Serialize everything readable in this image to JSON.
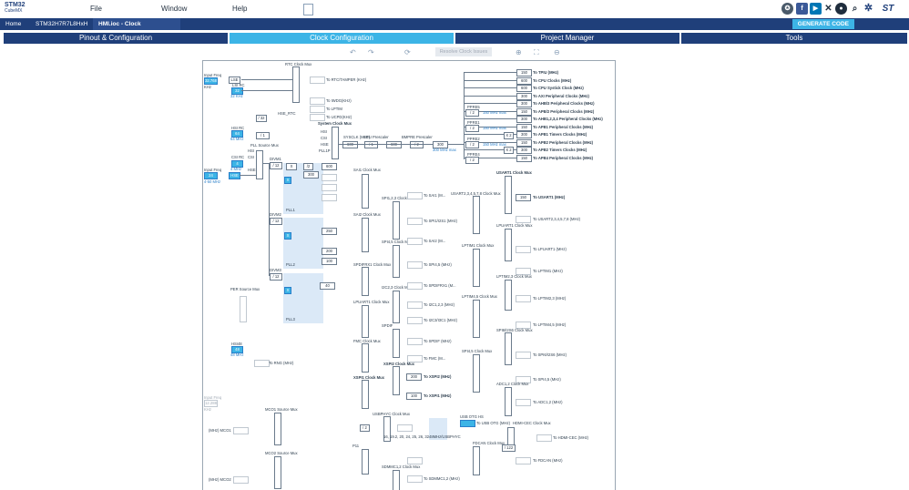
{
  "app": {
    "logo_line1": "STM32",
    "logo_line2": "CubeMX"
  },
  "menu": [
    {
      "label": "File"
    },
    {
      "label": "Window"
    },
    {
      "label": "Help"
    }
  ],
  "breadcrumbs": [
    {
      "label": "Home"
    },
    {
      "label": "STM32H7R7L8HxH"
    },
    {
      "label": "HMI.ioc - Clock Configuration"
    }
  ],
  "generate_label": "GENERATE CODE",
  "tabs": [
    {
      "label": "Pinout & Configuration"
    },
    {
      "label": "Clock Configuration"
    },
    {
      "label": "Project Manager"
    },
    {
      "label": "Tools"
    }
  ],
  "toolbar": {
    "resolve_label": "Resolve Clock Issues"
  },
  "clock": {
    "input_freq_lse": "32.768",
    "lse_label": "LSE",
    "lsi_label": "LSI RC",
    "lsi_val": "32",
    "lsi_khz": "32 KHz",
    "rtc_mux": "RTC Clock Mux",
    "to_rtc": "To RTC/TAMPER (KHz)",
    "to_iwdg": "To IWDG(KHz)",
    "to_lptim": "To LPTIM",
    "to_ucpd": "To UCPD(KHz)",
    "hse_rtc": "HSE_RTC",
    "div32": "/ 32",
    "csi_label": "CSI_KHZ",
    "hsi_label": "HSI RC",
    "hsi_val": "64",
    "hsi_mhz": "64 MHz",
    "csi_rc": "CSI RC",
    "csi_val": "4",
    "csi_mhz": "4 MHz",
    "hse_label": "HSE",
    "input_freq_hse": "24",
    "hse_range": "4-50 MHz",
    "sys_mux": "System Clock Mux",
    "hsi_in": "HSI",
    "csi_in": "CSI",
    "hse_in": "HSE",
    "pll1p_in": "PLL1P",
    "sysclk": "SYSCLK (MHz)",
    "sysclk_val": "600",
    "cpre": "CPU Prescaler",
    "cpre_val": "/ 1",
    "cpu_clk_val": "600",
    "bmpre": "BMPRE Prescaler",
    "bmpre_val": "/ 2",
    "hclk_label": "HCLK (MHz)",
    "hclk_val": "300",
    "hclk_max": "300 MHz max",
    "outputs": [
      {
        "val": "150",
        "label": "To TPIU (MHz)"
      },
      {
        "val": "600",
        "label": "To CPU Clocks (MHz)"
      },
      {
        "val": "600",
        "label": "To CPU Systick Clock (MHz)"
      },
      {
        "val": "300",
        "label": "To AXI Peripheral Clocks (MHz)"
      },
      {
        "val": "300",
        "label": "To AHB/3 Peripheral Clocks (MHz)"
      },
      {
        "val": "150",
        "label": "To APB/2 Peripheral Clocks (MHz)"
      },
      {
        "val": "300",
        "label": "To AHB1,2,3,4 Peripheral Clocks (MHz)"
      },
      {
        "val": "150",
        "label": "To APB1 Peripheral Clocks (MHz)"
      },
      {
        "val": "300",
        "label": "To APB1 Timers Clocks (MHz)"
      },
      {
        "val": "150",
        "label": "To APB2 Peripheral Clocks (MHz)"
      },
      {
        "val": "300",
        "label": "To APB2 Timers Clocks (MHz)"
      },
      {
        "val": "150",
        "label": "To APB4 Peripheral Clocks (MHz)"
      }
    ],
    "ppre": [
      "PPRE5",
      "PPRE1",
      "PPRE2",
      "PPRE4"
    ],
    "div2": "/ 2",
    "x2": "X 2",
    "max150": "150 MHz max",
    "pll_src": "PLL Source Mux",
    "pll_in": [
      "HSI",
      "CSI",
      "HSE"
    ],
    "divm1": "DIVM1",
    "divm1_val": "/ 12",
    "divm2": "DIVM2",
    "divm2_val": "/ 12",
    "divm3": "DIVM3",
    "divm3_val": "/ 12",
    "pll1": "PLL1",
    "pll2": "PLL2",
    "pll3": "PLL3",
    "fract": "Fract",
    "x_label": "X",
    "n1": "300",
    "p1": "600",
    "n2": "250",
    "s2": "200",
    "t2": "100",
    "n3": "40",
    "peri_mux": "PER Source Mux",
    "hsi48": "HSI48",
    "hsi48_val": "48",
    "hsi48_mhz": "48 MHz",
    "to_rng": "To RNG (MHz)",
    "input_freq": "Input Freq",
    "ext_clk": "12.288",
    "khz": "KHz",
    "sai1": "SAI1 Clock Mux",
    "to_sai1": "To SAI1 (M...",
    "sai2": "SAI2 Clock Mux",
    "to_sai2": "To SAI2 (M...",
    "spdif": "SPDIFRX1 Clock Mux",
    "to_spdif": "To SPDIFRX1 (M...",
    "lpuart1": "LPUART1 Clock Mux",
    "to_lpuart1": "To LPUART1 (MHz)",
    "usart1": "USART1 Clock Mux",
    "usart1_val": "150",
    "to_usart1": "To USART1 (MHz)",
    "to_usart2": "To USART2,3,4,5,7,8 (MHz)",
    "lptim1": "LPTIM1 Clock Mux",
    "to_lptim1": "To LPTIM1 (MHz)",
    "lptim2": "LPTIM2,3 Clock Mux",
    "to_lptim2": "To LPTIM2,3 (MHz)",
    "to_lptim45": "To LPTIM4,5 (MHz)",
    "spi6": "SPI6/I2S6 Clock Mux",
    "to_spi6": "To SPI6/I2S6 (MHz)",
    "to_spi45": "To SPI4,5 (MHz)",
    "adc": "ADC1,2 Clock Mux",
    "to_adc": "To ADC1,2 (MHz)",
    "xspi1": "XSPI1 Clock Mux",
    "xspi2": "XSPI2 Clock Mux",
    "xspi1_val": "200",
    "to_xspi1": "To XSPI2 (MHz)",
    "xspi2_val": "100",
    "to_xspi2": "To XSPI1 (MHz)",
    "fmc": "FMC Clock Mux",
    "to_fmc": "To FMC (M...",
    "usbphy": "USBPHYC Clock Mux",
    "otg_hs": "USB OTG HS",
    "usbphy_div": "/ 2",
    "mco1": "MCO1 Source Mux",
    "mco2": "MCO2 Source Mux",
    "mco1_out": "(MHz) MCO1",
    "mco2_out": "(MHz) MCO2",
    "hdmi": "HDMI-CEC Clock Mux",
    "to_hdmi": "To HDMI-CEC (MHz)",
    "lse_ck": "LSE",
    "csi_div": "/ 122",
    "to_fdcan": "To FDCAN (MHz)",
    "fdcan": "FDCAN Clock Mux",
    "sdmmc": "SDMMC1,2 Clock Mux",
    "to_sdmmc": "To SDMMC1,2 (MHz)",
    "p11": "P11",
    "i2c": "I2C1,2,3 Clock Mux",
    "to_i2c": "To I2C1,2,3 (MHz)",
    "spdif_lbl": "SPDIF",
    "hse_div": "HSE",
    "f1": "16, 19.2, 20, 24, 25, 26, 32",
    "f1_box": "48MHz/USBPHYC",
    "usb_lbl": "To USB OTG (MHz)"
  }
}
